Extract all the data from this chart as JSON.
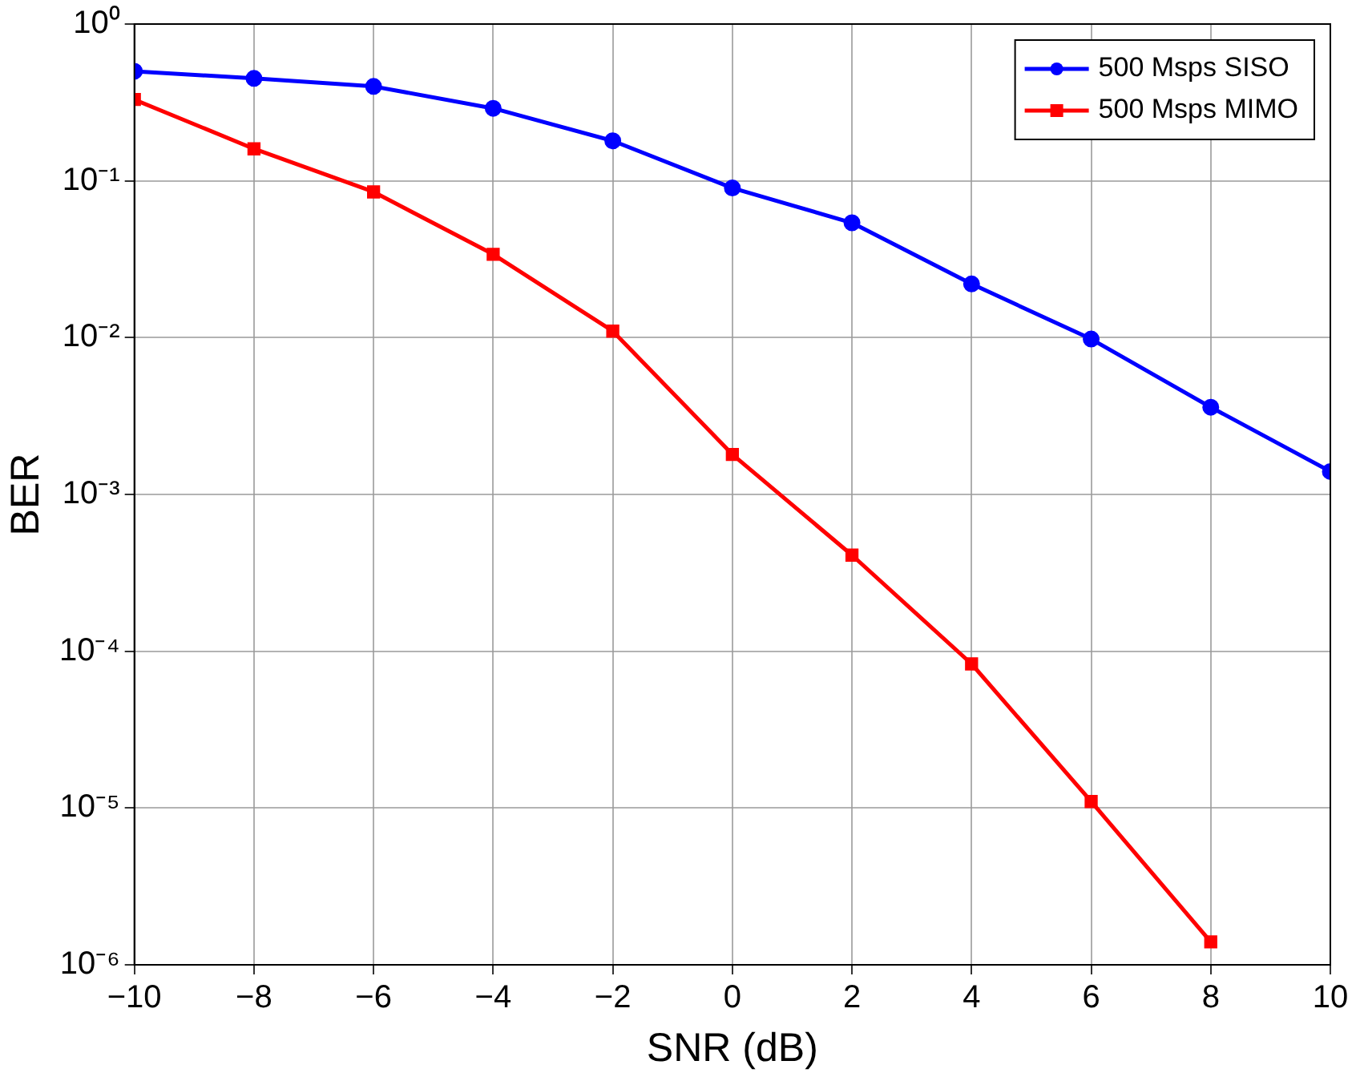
{
  "chart_data": {
    "type": "line",
    "xlabel": "SNR (dB)",
    "ylabel": "BER",
    "x": [
      -10,
      -8,
      -6,
      -4,
      -2,
      0,
      2,
      4,
      6,
      8,
      10
    ],
    "series": [
      {
        "name": "500 Msps SISO",
        "color": "#0000ff",
        "marker": "circle",
        "values": [
          0.5,
          0.45,
          0.4,
          0.29,
          0.18,
          0.09,
          0.054,
          0.022,
          0.0098,
          0.0036,
          0.0014
        ]
      },
      {
        "name": "500 Msps MIMO",
        "color": "#ff0000",
        "marker": "square",
        "values": [
          0.33,
          0.16,
          0.085,
          0.034,
          0.011,
          0.0018,
          0.00041,
          8.3e-05,
          1.1e-05,
          1.4e-06,
          null
        ]
      }
    ],
    "log": "y",
    "xlim": [
      -10,
      10
    ],
    "xticks": [
      {
        "value": -10,
        "label": "−10"
      },
      {
        "value": -8,
        "label": "−8"
      },
      {
        "value": -6,
        "label": "−6"
      },
      {
        "value": -4,
        "label": "−4"
      },
      {
        "value": -2,
        "label": "−2"
      },
      0,
      2,
      4,
      6,
      8,
      10
    ],
    "ylim": [
      1e-06,
      1
    ],
    "yticks": [
      {
        "value": 1e-06,
        "label": "10⁻⁶"
      },
      {
        "value": 1e-05,
        "label": "10⁻⁵"
      },
      {
        "value": 0.0001,
        "label": "10⁻⁴"
      },
      {
        "value": 0.001,
        "label": "10⁻³"
      },
      {
        "value": 0.01,
        "label": "10⁻²"
      },
      {
        "value": 0.1,
        "label": "10⁻¹"
      },
      {
        "value": 1,
        "label": "10⁰"
      }
    ],
    "grid": true,
    "legend": "top right",
    "line_style": "solid"
  }
}
